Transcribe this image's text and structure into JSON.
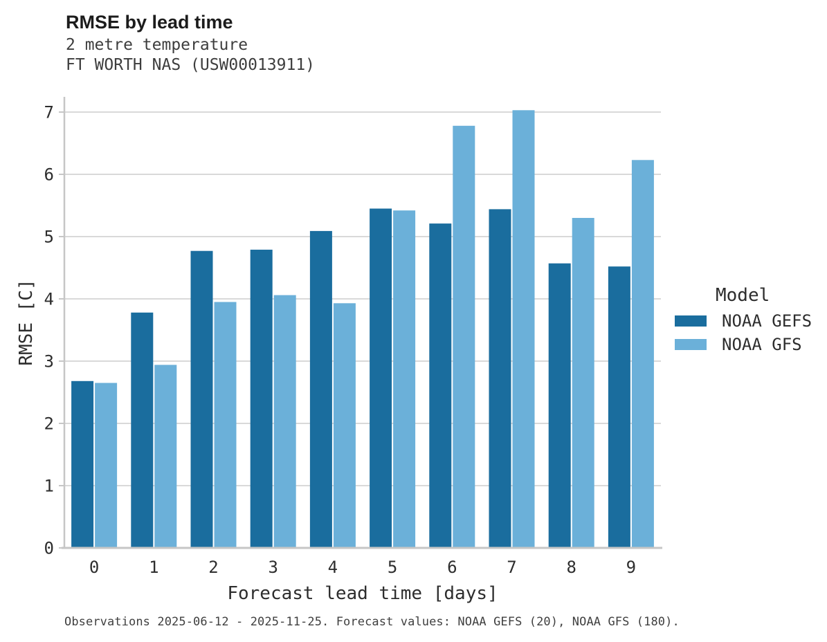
{
  "header": {
    "title": "RMSE by lead time",
    "subtitle1": "2 metre temperature",
    "subtitle2": "FT WORTH NAS (USW00013911)"
  },
  "chart_data": {
    "type": "bar",
    "title": "RMSE by lead time",
    "subtitle": [
      "2 metre temperature",
      "FT WORTH NAS (USW00013911)"
    ],
    "categories": [
      "0",
      "1",
      "2",
      "3",
      "4",
      "5",
      "6",
      "7",
      "8",
      "9"
    ],
    "series": [
      {
        "name": "NOAA GEFS",
        "color": "#1a6d9e",
        "values": [
          2.68,
          3.78,
          4.77,
          4.79,
          5.09,
          5.45,
          5.21,
          5.44,
          4.57,
          4.52
        ]
      },
      {
        "name": "NOAA GFS",
        "color": "#6bb0d9",
        "values": [
          2.65,
          2.94,
          3.95,
          4.06,
          3.93,
          5.42,
          6.78,
          7.03,
          5.3,
          6.23
        ]
      }
    ],
    "xlabel": "Forecast lead time [days]",
    "ylabel": "RMSE [C]",
    "ylim": [
      0,
      7.25
    ],
    "yticks": [
      0,
      1,
      2,
      3,
      4,
      5,
      6,
      7
    ],
    "grid": true,
    "legend_position": "right"
  },
  "legend": {
    "title": "Model",
    "items": [
      {
        "label": "NOAA GEFS",
        "color": "#1a6d9e"
      },
      {
        "label": "NOAA GFS",
        "color": "#6bb0d9"
      }
    ]
  },
  "footer": {
    "note": "Observations 2025-06-12 - 2025-11-25. Forecast values: NOAA GEFS (20), NOAA GFS (180)."
  },
  "colors": {
    "grid": "#d9d9d9",
    "axis": "#c6c6c6",
    "tick_text": "#2d2d2d"
  }
}
